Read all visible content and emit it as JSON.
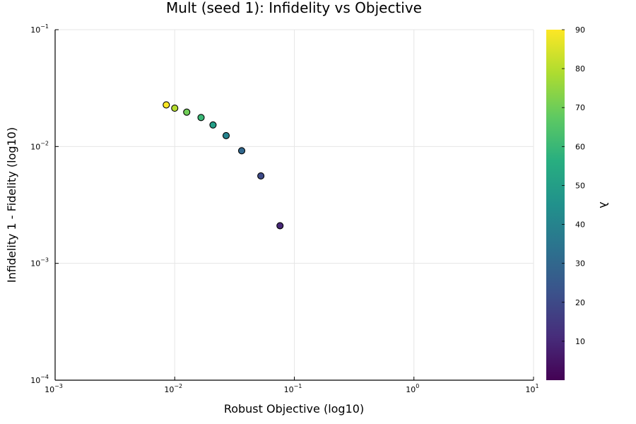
{
  "chart_data": {
    "type": "scatter",
    "title": "Mult (seed 1): Infidelity vs Objective",
    "xlabel": "Robust Objective (log10)",
    "ylabel": "Infidelity 1 - Fidelity (log10)",
    "xscale": "log10",
    "yscale": "log10",
    "xlim": [
      0.001,
      10
    ],
    "ylim": [
      0.0001,
      0.1
    ],
    "grid": true,
    "legend": "none",
    "x_ticks": [
      {
        "base": "10",
        "exp": "−3"
      },
      {
        "base": "10",
        "exp": "−2"
      },
      {
        "base": "10",
        "exp": "−1"
      },
      {
        "base": "10",
        "exp": "0"
      },
      {
        "base": "10",
        "exp": "1"
      }
    ],
    "y_ticks": [
      {
        "base": "10",
        "exp": "−4"
      },
      {
        "base": "10",
        "exp": "−3"
      },
      {
        "base": "10",
        "exp": "−2"
      },
      {
        "base": "10",
        "exp": "−1"
      }
    ],
    "points": [
      {
        "x": 0.0085,
        "y": 0.0227,
        "lambda": 90
      },
      {
        "x": 0.01,
        "y": 0.0213,
        "lambda": 80
      },
      {
        "x": 0.0126,
        "y": 0.0197,
        "lambda": 70
      },
      {
        "x": 0.0166,
        "y": 0.0177,
        "lambda": 60
      },
      {
        "x": 0.0209,
        "y": 0.0153,
        "lambda": 50
      },
      {
        "x": 0.0269,
        "y": 0.0124,
        "lambda": 40
      },
      {
        "x": 0.0363,
        "y": 0.0092,
        "lambda": 30
      },
      {
        "x": 0.0525,
        "y": 0.0056,
        "lambda": 20
      },
      {
        "x": 0.0759,
        "y": 0.0021,
        "lambda": 10
      }
    ],
    "colorbar": {
      "label": "λ",
      "colormap": "viridis",
      "range": [
        0,
        90
      ],
      "ticks": [
        "10",
        "20",
        "30",
        "40",
        "50",
        "60",
        "70",
        "80",
        "90"
      ]
    }
  }
}
